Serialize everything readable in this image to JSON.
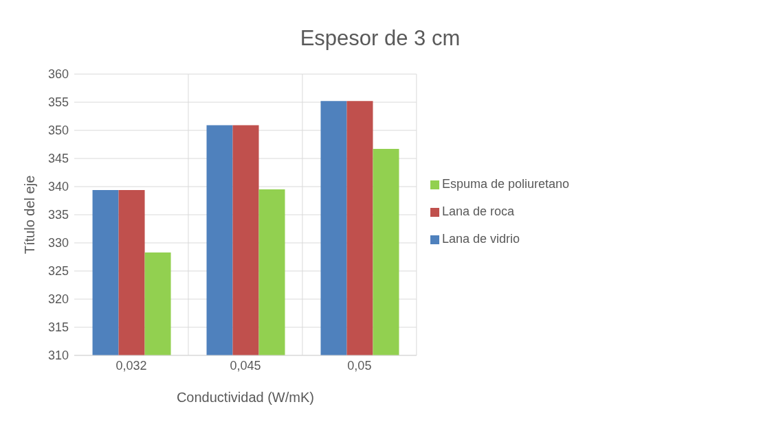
{
  "chart_data": {
    "type": "bar",
    "title": "Espesor de 3 cm",
    "xlabel": "Conductividad (W/mK)",
    "ylabel": "Título del eje",
    "categories": [
      "0,032",
      "0,045",
      "0,05"
    ],
    "series": [
      {
        "name": "Lana de vidrio",
        "color": "#4f81bd",
        "values": [
          339.4,
          350.9,
          355.2
        ]
      },
      {
        "name": "Lana de roca",
        "color": "#c0504d",
        "values": [
          339.4,
          350.9,
          355.2
        ]
      },
      {
        "name": "Espuma de poliuretano",
        "color": "#92d050",
        "values": [
          328.3,
          339.5,
          346.7
        ]
      }
    ],
    "ylim": [
      310,
      360
    ],
    "yticks": [
      310,
      315,
      320,
      325,
      330,
      335,
      340,
      345,
      350,
      355,
      360
    ],
    "grid": true,
    "legend": "right"
  }
}
